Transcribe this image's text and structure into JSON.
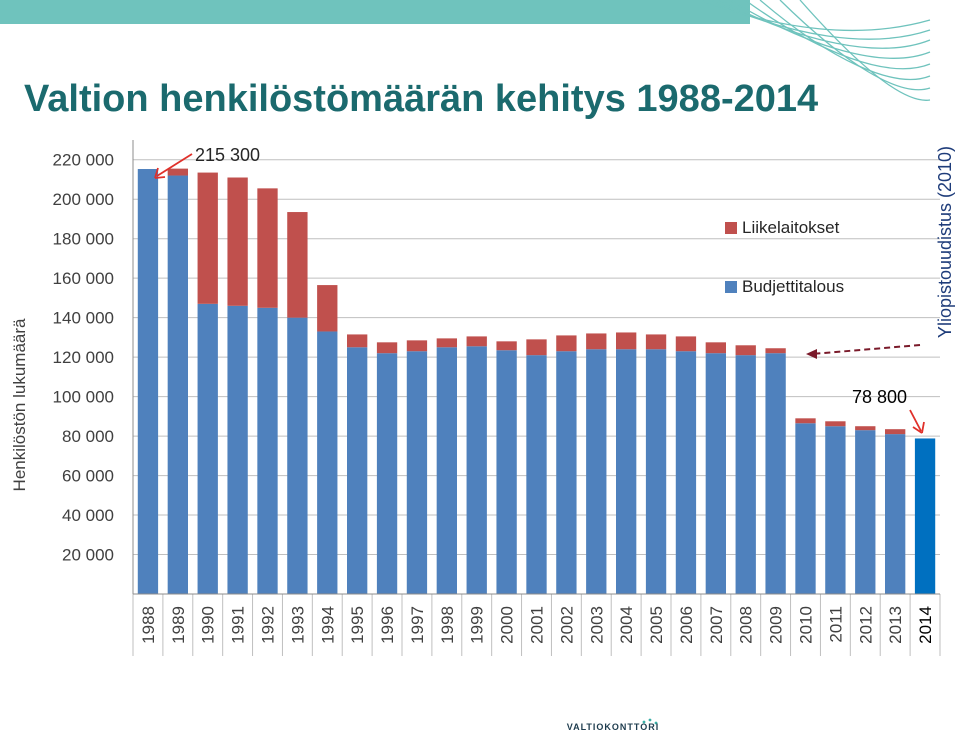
{
  "header": {
    "title": "Valtion henkilöstömäärän kehitys 1988-2014",
    "accent_color": "#1b6a6e",
    "banner_color": "#6fc3bd"
  },
  "footer": {
    "logo_text": "VALTIOKONTTORI"
  },
  "chart_data": {
    "type": "bar",
    "stacked": true,
    "ylabel": "Henkilöstön lukumäärä",
    "xlabel": "",
    "ylim": [
      0,
      230000
    ],
    "yticks": [
      20000,
      40000,
      60000,
      80000,
      100000,
      120000,
      140000,
      160000,
      180000,
      200000,
      220000
    ],
    "ytick_labels": [
      "20 000",
      "40 000",
      "60 000",
      "80 000",
      "100 000",
      "120 000",
      "140 000",
      "160 000",
      "180 000",
      "200 000",
      "220 000"
    ],
    "grid": true,
    "legend_position": "right",
    "categories": [
      "1988",
      "1989",
      "1990",
      "1991",
      "1992",
      "1993",
      "1994",
      "1995",
      "1996",
      "1997",
      "1998",
      "1999",
      "2000",
      "2001",
      "2002",
      "2003",
      "2004",
      "2005",
      "2006",
      "2007",
      "2008",
      "2009",
      "2010",
      "2011",
      "2012",
      "2013",
      "2014"
    ],
    "series": [
      {
        "name": "Budjettitalous",
        "color": "#4f81bd",
        "values": [
          215300,
          212000,
          147000,
          146000,
          145000,
          140000,
          133000,
          125000,
          122000,
          123000,
          125000,
          125500,
          123500,
          121000,
          123000,
          124000,
          124000,
          124000,
          123000,
          122000,
          121000,
          122000,
          86500,
          85000,
          83000,
          81000,
          null
        ]
      },
      {
        "name": "Liikelaitokset",
        "color": "#c0504d",
        "values": [
          0,
          3500,
          66500,
          65000,
          60500,
          53500,
          23500,
          6500,
          5500,
          5500,
          4500,
          5000,
          4500,
          8000,
          8000,
          8000,
          8500,
          7500,
          7500,
          5500,
          5000,
          2500,
          2500,
          2500,
          2000,
          2500,
          null
        ]
      }
    ],
    "highlight": {
      "category": "2014",
      "value": 78800,
      "color": "#0070c0"
    },
    "annotations": {
      "peak_label": "215 300",
      "end_label": "78 800",
      "reform_label": "Yliopistouudistus (2010)"
    }
  }
}
